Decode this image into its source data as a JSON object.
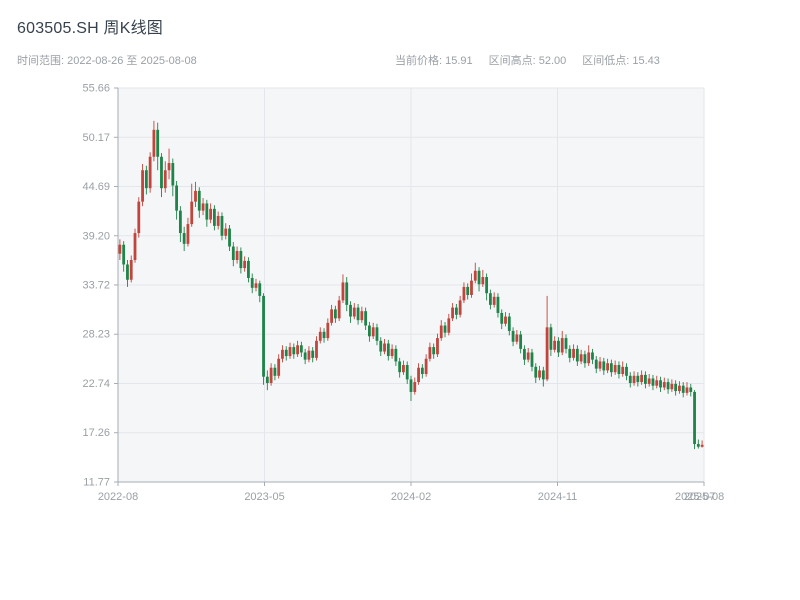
{
  "header": {
    "title": "603505.SH 周K线图",
    "subtitle_left": "时间范围: 2022-08-26 至 2025-08-08",
    "stats": {
      "current_label": "当前价格: 15.91",
      "high_label": "区间高点: 52.00",
      "low_label": "区间低点: 15.43"
    }
  },
  "chart_data": {
    "type": "candlestick",
    "symbol": "603505.SH",
    "period": "weekly",
    "title": "603505.SH 周K线图",
    "date_range": {
      "start": "2022-08-26",
      "end": "2025-08-08"
    },
    "current_price": 15.91,
    "range_high": 52.0,
    "range_low": 15.43,
    "ylim": [
      11.77,
      55.66
    ],
    "y_ticks": [
      "11.77",
      "17.26",
      "22.74",
      "28.23",
      "33.72",
      "39.20",
      "44.69",
      "50.17",
      "55.66"
    ],
    "x_ticks": [
      {
        "label": "2022-08",
        "pos": 0.0,
        "grid": true
      },
      {
        "label": "2023-05",
        "pos": 0.25,
        "grid": true
      },
      {
        "label": "2024-02",
        "pos": 0.5,
        "grid": true
      },
      {
        "label": "2024-11",
        "pos": 0.75,
        "grid": true
      },
      {
        "label": "2025-07",
        "pos": 0.985,
        "grid": false
      },
      {
        "label": "2025-08",
        "pos": 1.0,
        "grid": true
      }
    ],
    "grid": true,
    "legend": "none",
    "colors": {
      "up": "#c0453c",
      "down": "#1e8449",
      "plot_bg": "#f5f6f8",
      "grid": "#e3e6ea",
      "spine": "#a6adb5",
      "tick_label": "#9aa0a6",
      "title": "#37424e",
      "subtitle": "#9aa0a6"
    },
    "candles_ohlc": [
      [
        37.2,
        38.8,
        36.5,
        38.2
      ],
      [
        38.2,
        38.6,
        35.2,
        36.0
      ],
      [
        36.0,
        36.5,
        33.5,
        34.3
      ],
      [
        34.3,
        37.0,
        34.0,
        36.5
      ],
      [
        36.5,
        40.0,
        36.2,
        39.5
      ],
      [
        39.5,
        43.5,
        39.0,
        43.0
      ],
      [
        43.0,
        47.2,
        42.5,
        46.5
      ],
      [
        46.5,
        47.0,
        43.8,
        44.5
      ],
      [
        44.5,
        48.5,
        44.0,
        48.0
      ],
      [
        48.0,
        52.0,
        47.5,
        51.0
      ],
      [
        51.0,
        51.8,
        46.5,
        48.0
      ],
      [
        48.0,
        48.4,
        43.5,
        44.5
      ],
      [
        44.5,
        47.5,
        44.0,
        46.5
      ],
      [
        46.5,
        48.9,
        45.5,
        47.3
      ],
      [
        47.3,
        47.8,
        43.6,
        44.8
      ],
      [
        44.8,
        45.3,
        41.0,
        42.0
      ],
      [
        42.0,
        42.5,
        38.5,
        39.5
      ],
      [
        39.5,
        40.2,
        37.5,
        38.3
      ],
      [
        38.3,
        41.2,
        38.0,
        40.5
      ],
      [
        40.5,
        45.0,
        40.2,
        43.0
      ],
      [
        43.0,
        45.2,
        42.4,
        44.2
      ],
      [
        44.2,
        44.6,
        41.2,
        42.0
      ],
      [
        42.0,
        43.4,
        41.5,
        42.8
      ],
      [
        42.8,
        43.2,
        40.2,
        41.0
      ],
      [
        41.0,
        42.8,
        40.6,
        42.2
      ],
      [
        42.2,
        42.6,
        39.8,
        40.3
      ],
      [
        40.3,
        41.9,
        39.9,
        41.4
      ],
      [
        41.4,
        41.8,
        38.7,
        39.2
      ],
      [
        39.2,
        40.6,
        38.8,
        40.0
      ],
      [
        40.0,
        40.4,
        37.5,
        38.0
      ],
      [
        38.0,
        38.5,
        35.8,
        36.5
      ],
      [
        36.5,
        38.0,
        36.1,
        37.5
      ],
      [
        37.5,
        37.9,
        35.0,
        35.6
      ],
      [
        35.6,
        36.9,
        35.2,
        36.4
      ],
      [
        36.4,
        36.8,
        34.0,
        34.5
      ],
      [
        34.5,
        35.0,
        32.8,
        33.4
      ],
      [
        33.4,
        34.4,
        33.0,
        33.9
      ],
      [
        33.9,
        34.2,
        31.8,
        32.5
      ],
      [
        32.5,
        32.8,
        22.6,
        23.5
      ],
      [
        23.5,
        24.2,
        22.0,
        22.8
      ],
      [
        22.8,
        25.0,
        22.5,
        24.5
      ],
      [
        24.5,
        24.9,
        23.1,
        23.6
      ],
      [
        23.6,
        26.0,
        23.3,
        25.5
      ],
      [
        25.5,
        27.0,
        25.1,
        26.5
      ],
      [
        26.5,
        26.9,
        25.3,
        25.8
      ],
      [
        25.8,
        27.3,
        25.5,
        26.8
      ],
      [
        26.8,
        27.2,
        25.5,
        26.0
      ],
      [
        26.0,
        27.5,
        25.7,
        27.0
      ],
      [
        27.0,
        27.4,
        25.7,
        26.2
      ],
      [
        26.2,
        26.6,
        24.9,
        25.4
      ],
      [
        25.4,
        26.9,
        25.1,
        26.4
      ],
      [
        26.4,
        26.8,
        25.1,
        25.6
      ],
      [
        25.6,
        28.0,
        25.3,
        27.5
      ],
      [
        27.5,
        29.0,
        27.2,
        28.5
      ],
      [
        28.5,
        28.9,
        27.3,
        27.8
      ],
      [
        27.8,
        30.0,
        27.5,
        29.5
      ],
      [
        29.5,
        31.5,
        29.2,
        31.0
      ],
      [
        31.0,
        31.4,
        29.5,
        30.0
      ],
      [
        30.0,
        32.5,
        29.7,
        32.0
      ],
      [
        32.0,
        34.9,
        31.7,
        34.0
      ],
      [
        34.0,
        34.6,
        30.8,
        31.5
      ],
      [
        31.5,
        31.9,
        29.5,
        30.2
      ],
      [
        30.2,
        31.7,
        29.9,
        31.2
      ],
      [
        31.2,
        31.6,
        29.3,
        29.8
      ],
      [
        29.8,
        31.3,
        29.5,
        30.8
      ],
      [
        30.8,
        31.2,
        28.7,
        29.2
      ],
      [
        29.2,
        29.6,
        27.4,
        28.0
      ],
      [
        28.0,
        29.5,
        27.7,
        29.0
      ],
      [
        29.0,
        29.4,
        27.0,
        27.5
      ],
      [
        27.5,
        27.9,
        25.8,
        26.3
      ],
      [
        26.3,
        27.7,
        26.0,
        27.2
      ],
      [
        27.2,
        27.6,
        25.3,
        25.8
      ],
      [
        25.8,
        27.1,
        25.5,
        26.6
      ],
      [
        26.6,
        27.0,
        24.7,
        25.2
      ],
      [
        25.2,
        25.6,
        23.4,
        24.0
      ],
      [
        24.0,
        25.3,
        23.7,
        24.8
      ],
      [
        24.8,
        25.2,
        22.7,
        23.2
      ],
      [
        23.2,
        23.6,
        20.8,
        21.8
      ],
      [
        21.8,
        23.4,
        21.5,
        22.9
      ],
      [
        22.9,
        25.0,
        22.6,
        24.5
      ],
      [
        24.5,
        24.9,
        23.3,
        23.8
      ],
      [
        23.8,
        26.0,
        23.5,
        25.5
      ],
      [
        25.5,
        27.3,
        25.2,
        26.8
      ],
      [
        26.8,
        27.2,
        25.5,
        26.0
      ],
      [
        26.0,
        28.3,
        25.7,
        27.8
      ],
      [
        27.8,
        29.8,
        27.5,
        29.2
      ],
      [
        29.2,
        29.6,
        27.9,
        28.4
      ],
      [
        28.4,
        30.5,
        28.1,
        30.0
      ],
      [
        30.0,
        31.7,
        29.7,
        31.2
      ],
      [
        31.2,
        31.6,
        29.9,
        30.4
      ],
      [
        30.4,
        32.5,
        30.1,
        32.0
      ],
      [
        32.0,
        34.0,
        31.7,
        33.5
      ],
      [
        33.5,
        33.9,
        32.1,
        32.6
      ],
      [
        32.6,
        35.0,
        32.3,
        34.2
      ],
      [
        34.2,
        36.2,
        33.9,
        35.3
      ],
      [
        35.3,
        35.7,
        33.0,
        33.8
      ],
      [
        33.8,
        35.4,
        33.5,
        34.6
      ],
      [
        34.6,
        35.0,
        32.0,
        32.8
      ],
      [
        32.8,
        33.2,
        31.0,
        31.5
      ],
      [
        31.5,
        32.9,
        31.2,
        32.4
      ],
      [
        32.4,
        32.8,
        30.1,
        30.6
      ],
      [
        30.6,
        31.0,
        28.8,
        29.4
      ],
      [
        29.4,
        30.7,
        29.1,
        30.2
      ],
      [
        30.2,
        30.6,
        28.1,
        28.6
      ],
      [
        28.6,
        29.0,
        26.9,
        27.4
      ],
      [
        27.4,
        28.7,
        27.1,
        28.2
      ],
      [
        28.2,
        28.6,
        26.1,
        26.6
      ],
      [
        26.6,
        27.0,
        24.8,
        25.4
      ],
      [
        25.4,
        26.7,
        25.1,
        26.2
      ],
      [
        26.2,
        26.6,
        24.1,
        24.6
      ],
      [
        24.6,
        25.0,
        22.8,
        23.4
      ],
      [
        23.4,
        24.7,
        23.1,
        24.2
      ],
      [
        24.2,
        24.6,
        22.4,
        23.2
      ],
      [
        23.2,
        32.5,
        23.0,
        29.0
      ],
      [
        29.0,
        29.4,
        25.8,
        26.5
      ],
      [
        26.5,
        28.0,
        26.2,
        27.5
      ],
      [
        27.5,
        27.9,
        25.7,
        26.2
      ],
      [
        26.2,
        28.6,
        25.9,
        27.8
      ],
      [
        27.8,
        28.2,
        26.1,
        26.6
      ],
      [
        26.6,
        27.0,
        25.1,
        25.6
      ],
      [
        25.6,
        27.1,
        25.3,
        26.6
      ],
      [
        26.6,
        27.0,
        24.7,
        25.2
      ],
      [
        25.2,
        26.5,
        24.9,
        26.0
      ],
      [
        26.0,
        26.4,
        24.5,
        25.0
      ],
      [
        25.0,
        27.0,
        24.7,
        26.2
      ],
      [
        26.2,
        26.6,
        24.9,
        25.4
      ],
      [
        25.4,
        25.8,
        23.9,
        24.4
      ],
      [
        24.4,
        25.7,
        24.1,
        25.2
      ],
      [
        25.2,
        25.6,
        23.7,
        24.2
      ],
      [
        24.2,
        25.5,
        23.9,
        25.0
      ],
      [
        25.0,
        25.4,
        23.5,
        24.0
      ],
      [
        24.0,
        25.3,
        23.7,
        24.8
      ],
      [
        24.8,
        25.2,
        23.3,
        23.8
      ],
      [
        23.8,
        25.2,
        23.5,
        24.6
      ],
      [
        24.6,
        25.0,
        23.1,
        23.6
      ],
      [
        23.6,
        24.0,
        22.3,
        22.8
      ],
      [
        22.8,
        24.1,
        22.5,
        23.6
      ],
      [
        23.6,
        24.0,
        22.4,
        22.9
      ],
      [
        22.9,
        24.2,
        22.6,
        23.7
      ],
      [
        23.7,
        24.1,
        22.2,
        22.7
      ],
      [
        22.7,
        23.8,
        22.4,
        23.3
      ],
      [
        23.3,
        23.7,
        22.0,
        22.5
      ],
      [
        22.5,
        23.6,
        22.2,
        23.1
      ],
      [
        23.1,
        23.5,
        21.8,
        22.3
      ],
      [
        22.3,
        23.4,
        22.0,
        22.9
      ],
      [
        22.9,
        23.3,
        21.6,
        22.1
      ],
      [
        22.1,
        23.2,
        21.8,
        22.7
      ],
      [
        22.7,
        23.1,
        21.4,
        21.9
      ],
      [
        21.9,
        23.0,
        21.6,
        22.5
      ],
      [
        22.5,
        22.9,
        21.2,
        21.7
      ],
      [
        21.7,
        22.9,
        21.4,
        22.3
      ],
      [
        22.3,
        22.7,
        21.3,
        21.8
      ],
      [
        21.8,
        22.0,
        15.43,
        16.0
      ],
      [
        16.0,
        16.5,
        15.5,
        15.7
      ],
      [
        15.7,
        16.4,
        15.6,
        15.91
      ]
    ]
  }
}
